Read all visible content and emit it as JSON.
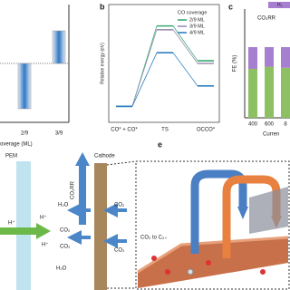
{
  "chart_data": [
    {
      "type": "bar",
      "categories": [
        "2/9",
        "3/9"
      ],
      "values": [
        -1.0,
        0.72
      ],
      "ylim": [
        -1.3,
        1.3
      ],
      "x_label": "overage (ML)",
      "color": "#2f78c4"
    },
    {
      "type": "line",
      "panel_label": "b",
      "y_label": "Relative energy (eV)",
      "categories": [
        "CO* + CO*",
        "TS",
        "OCCO*"
      ],
      "category_colors": [
        "#222222",
        "#e0302a",
        "#222222"
      ],
      "legend_title": "CO coverage",
      "ylim": [
        -0.3,
        1.9
      ],
      "series": [
        {
          "name": "2/9 ML",
          "color": "#3aa876",
          "values": [
            0,
            1.5,
            0.85
          ]
        },
        {
          "name": "3/9 ML",
          "color": "#9a90b2",
          "values": [
            0,
            1.43,
            0.8
          ]
        },
        {
          "name": "4/9 ML",
          "color": "#2f7fc1",
          "values": [
            0,
            1.0,
            0.38
          ]
        }
      ]
    },
    {
      "type": "stacked_bar",
      "panel_label": "c",
      "annotation": "CO₂RR",
      "y_label": "FE (%)",
      "x_label": "Curren",
      "categories": [
        "400",
        "600",
        "8"
      ],
      "ylim": [
        0,
        100
      ],
      "series": [
        {
          "color": "#8cc063",
          "values": [
            45,
            47,
            46
          ]
        },
        {
          "name": "H₂",
          "color": "#a77fd0",
          "values": [
            20,
            18,
            19
          ]
        }
      ]
    }
  ],
  "diagram": {
    "panel_label": "e",
    "membrane": "PEM",
    "electrode": "Cathode",
    "reaction": "CO₂RR",
    "protons": [
      "H⁺",
      "H⁺",
      "H⁺"
    ],
    "left_species": [
      "H₂O",
      "CO₂",
      "CO₂",
      "H₂O"
    ],
    "right_species": [
      "CO₂",
      "CO₂"
    ],
    "caption": "CO₂ to C₂₊"
  }
}
